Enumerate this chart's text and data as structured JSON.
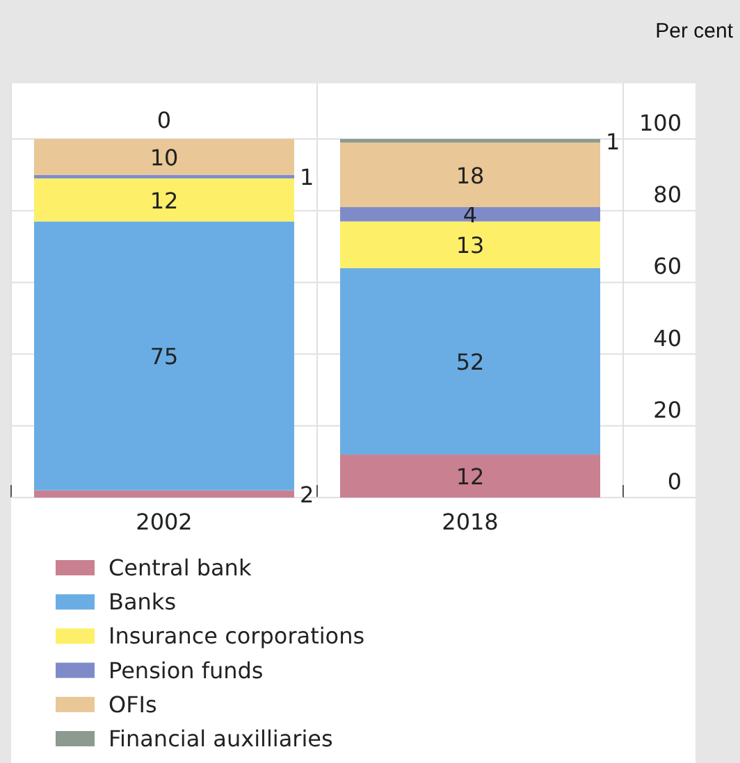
{
  "chart_data": {
    "type": "bar",
    "ylabel": "Per cent",
    "categories": [
      "2002",
      "2018"
    ],
    "stacked": true,
    "data_labels": true,
    "grid": true,
    "legend": "bottom",
    "ylim": [
      0,
      100
    ],
    "yticks": [
      0,
      20,
      40,
      60,
      80,
      100
    ],
    "series": [
      {
        "name": "Central bank",
        "color": "#c98090",
        "values": [
          2,
          12
        ]
      },
      {
        "name": "Banks",
        "color": "#6aade4",
        "values": [
          75,
          52
        ]
      },
      {
        "name": "Insurance corporations",
        "color": "#fdf068",
        "values": [
          12,
          13
        ]
      },
      {
        "name": "Pension funds",
        "color": "#7f8bc9",
        "values": [
          1,
          4
        ]
      },
      {
        "name": "OFIs",
        "color": "#e9c796",
        "values": [
          10,
          18
        ]
      },
      {
        "name": "Financial auxilliaries",
        "color": "#8c9a90",
        "values": [
          0,
          1
        ]
      }
    ]
  }
}
